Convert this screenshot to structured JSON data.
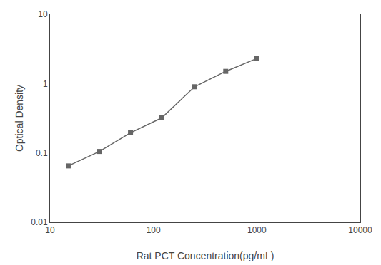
{
  "chart_data": {
    "type": "line",
    "x": [
      15,
      30,
      60,
      120,
      250,
      500,
      1000
    ],
    "values": [
      0.065,
      0.105,
      0.195,
      0.32,
      0.9,
      1.5,
      2.3
    ],
    "xlabel": "Rat PCT Concentration(pg/mL)",
    "ylabel": "Optical Density",
    "xlim": [
      10,
      10000
    ],
    "ylim": [
      0.01,
      10
    ],
    "xticks": [
      10,
      100,
      1000,
      10000
    ],
    "yticks": [
      0.01,
      0.1,
      1,
      10
    ],
    "log": true,
    "grid": false,
    "color": "#666666",
    "marker": "square"
  }
}
